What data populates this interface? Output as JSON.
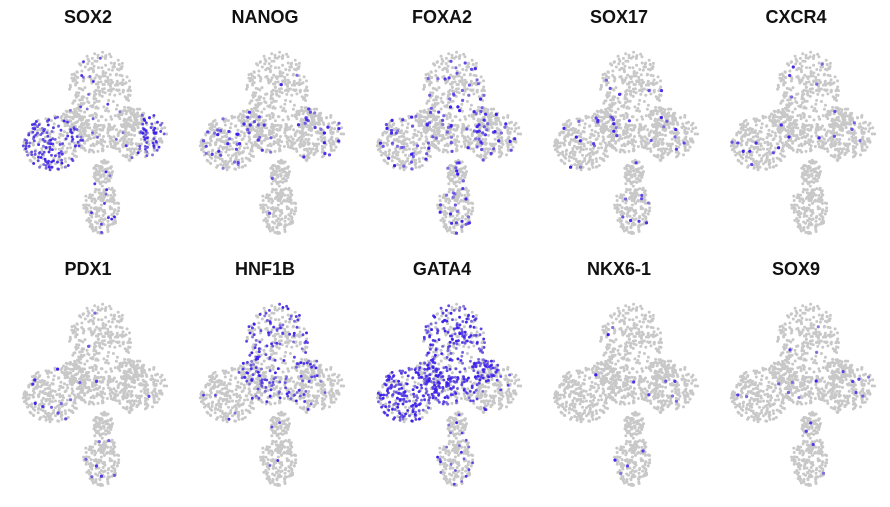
{
  "chart_data": {
    "type": "scatter",
    "layout": "2x5 grid of feature plots sharing one embedding",
    "background_color": "#c8c8c8",
    "expression_color": "#3a1df0",
    "grid": false,
    "axes_visible": false,
    "legend": "none",
    "panels": [
      {
        "title": "SOX2",
        "expressing_region": "left-lobe-and-right-lobe",
        "relative_fraction": 0.35
      },
      {
        "title": "NANOG",
        "expressing_region": "left-lobe-and-right-edge",
        "relative_fraction": 0.1
      },
      {
        "title": "FOXA2",
        "expressing_region": "scattered",
        "relative_fraction": 0.1
      },
      {
        "title": "SOX17",
        "expressing_region": "sparse",
        "relative_fraction": 0.03
      },
      {
        "title": "CXCR4",
        "expressing_region": "sparse-left-and-right",
        "relative_fraction": 0.03
      },
      {
        "title": "PDX1",
        "expressing_region": "sparse-top",
        "relative_fraction": 0.02
      },
      {
        "title": "HNF1B",
        "expressing_region": "top-lobe-and-scattered",
        "relative_fraction": 0.2
      },
      {
        "title": "GATA4",
        "expressing_region": "top-lobe-dense",
        "relative_fraction": 0.4
      },
      {
        "title": "NKX6-1",
        "expressing_region": "sparse",
        "relative_fraction": 0.015
      },
      {
        "title": "SOX9",
        "expressing_region": "sparse",
        "relative_fraction": 0.02
      }
    ]
  }
}
